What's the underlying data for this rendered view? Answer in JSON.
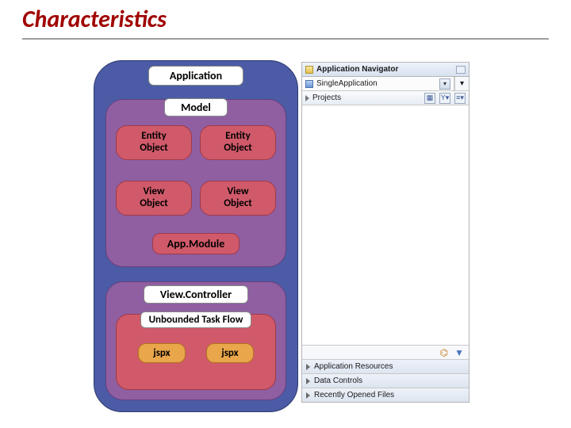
{
  "title": "Characteristics",
  "colors": {
    "title": "#a00000",
    "outer": "#4b5ba5",
    "inner": "#8f5fa2",
    "red": "#d05a6a",
    "orange": "#e9a64a",
    "panel_border": "#b4b4b4"
  },
  "diagram": {
    "application_label": "Application",
    "model": {
      "label": "Model",
      "entities": [
        "Entity\nObject",
        "Entity\nObject"
      ],
      "views": [
        "View\nObject",
        "View\nObject"
      ],
      "appmodule": "App.Module"
    },
    "viewcontroller": {
      "label": "View.Controller",
      "taskflow_label": "Unbounded Task Flow",
      "pages": [
        "jspx",
        "jspx"
      ]
    }
  },
  "ide": {
    "title": "Application Navigator",
    "application_selector": "SingleApplication",
    "projects_label": "Projects",
    "toolbar_icons": [
      "grid-icon",
      "filter-icon",
      "menu-icon"
    ],
    "accordion": [
      "Application Resources",
      "Data Controls",
      "Recently Opened Files"
    ]
  }
}
